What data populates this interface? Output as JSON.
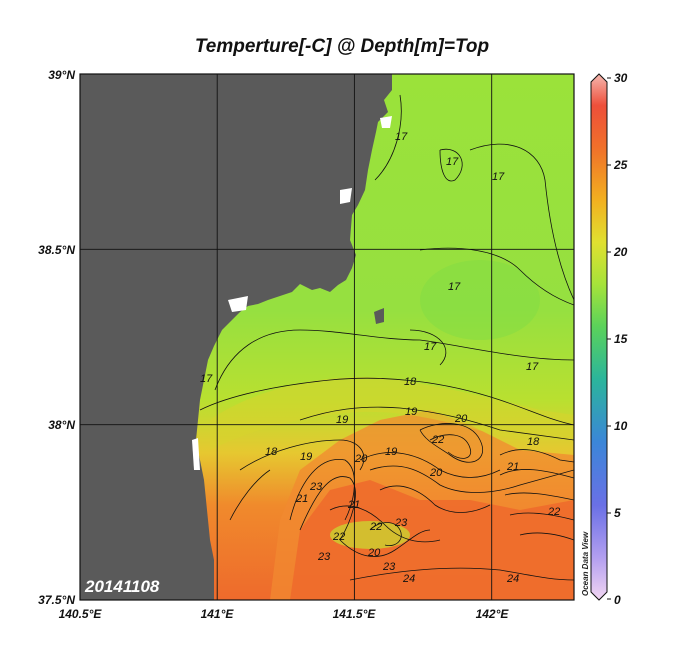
{
  "title": "Temperture[-C] @ Depth[m]=Top",
  "date_label": "20141108",
  "watermark": "Ocean Data View",
  "map": {
    "lon_range": [
      140.5,
      142.3
    ],
    "lat_range": [
      37.5,
      39.0
    ],
    "land_color": "#5a5a5a",
    "x_ticks": [
      {
        "label": "140.5°E"
      },
      {
        "label": "141°E"
      },
      {
        "label": "141.5°E"
      },
      {
        "label": "142°E"
      }
    ],
    "y_ticks": [
      {
        "label": "39°N"
      },
      {
        "label": "38.5°N"
      },
      {
        "label": "38°N"
      },
      {
        "label": "37.5°N"
      }
    ]
  },
  "colorbar": {
    "min": 0,
    "max": 30,
    "labels": [
      "30",
      "25",
      "20",
      "15",
      "10",
      "5",
      "0"
    ]
  },
  "contour_labels": [
    "17",
    "17",
    "17",
    "17",
    "17",
    "17",
    "17",
    "18",
    "18",
    "18",
    "19",
    "19",
    "19",
    "19",
    "20",
    "20",
    "20",
    "20",
    "21",
    "21",
    "21",
    "22",
    "22",
    "22",
    "22",
    "23",
    "23",
    "23",
    "23",
    "24",
    "24"
  ]
}
